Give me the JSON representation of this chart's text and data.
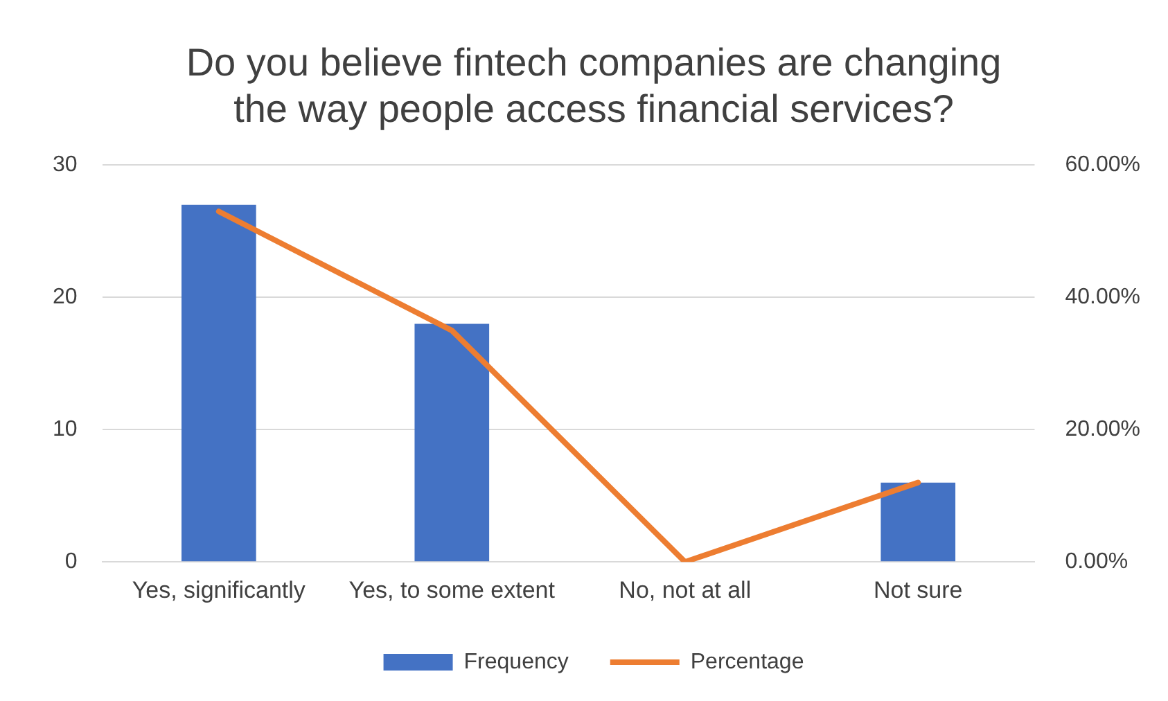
{
  "chart_data": {
    "type": "bar",
    "title": "Do you believe fintech companies are changing the way people access financial services?",
    "categories": [
      "Yes, significantly",
      "Yes, to some extent",
      "No, not at all",
      "Not sure"
    ],
    "series": [
      {
        "name": "Frequency",
        "color": "#4472c4",
        "values": [
          27,
          18,
          0,
          6
        ]
      },
      {
        "name": "Percentage",
        "type": "line",
        "axis": "y2",
        "color": "#ed7d31",
        "values": [
          53,
          35,
          0,
          12
        ]
      }
    ],
    "ylim": [
      0,
      30
    ],
    "yticks": [
      0,
      10,
      20,
      30
    ],
    "y2lim": [
      0,
      60
    ],
    "y2ticks": [
      {
        "value": 0,
        "label": "0.00%"
      },
      {
        "value": 20,
        "label": "20.00%"
      },
      {
        "value": 40,
        "label": "40.00%"
      },
      {
        "value": 60,
        "label": "60.00%"
      }
    ],
    "grid": "y",
    "legend": "bottom",
    "marker": "none",
    "line_style": "solid"
  }
}
